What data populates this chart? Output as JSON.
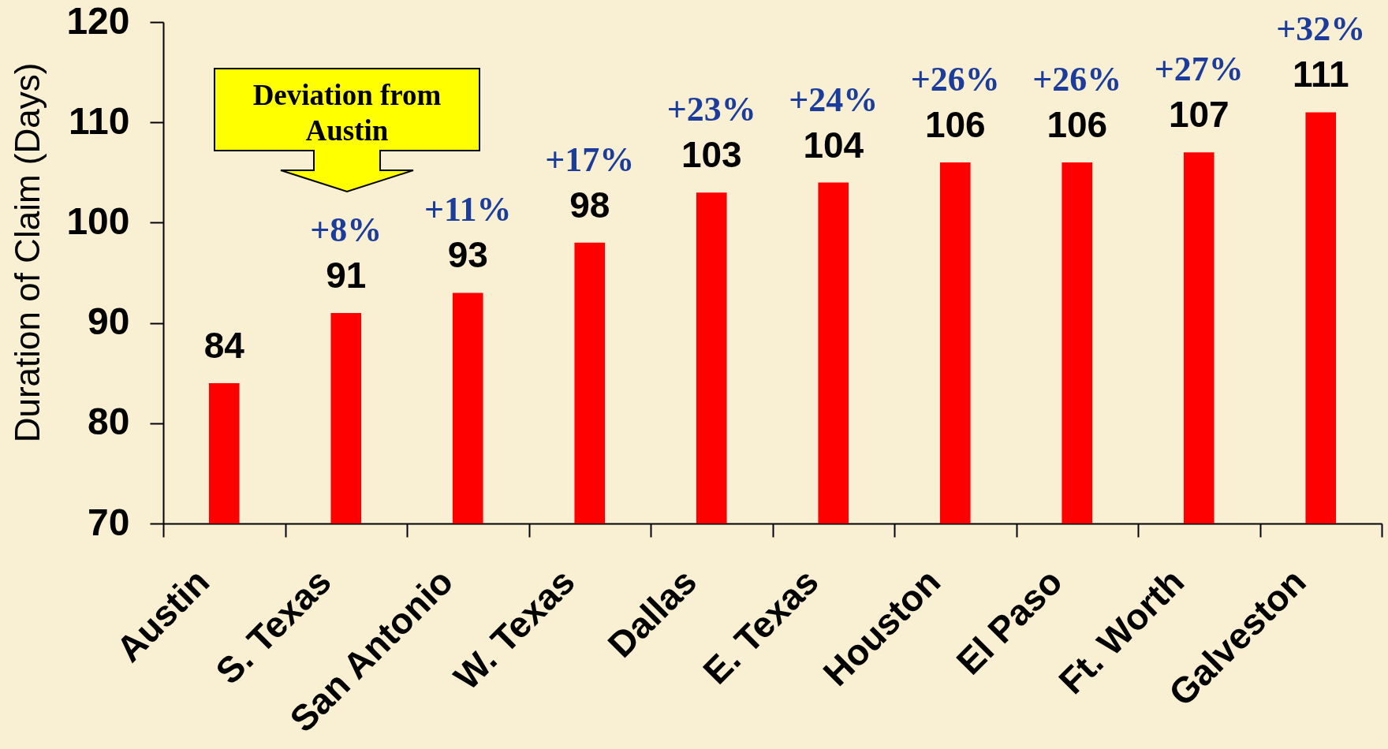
{
  "chart_data": {
    "type": "bar",
    "ylabel": "Duration of Claim (Days)",
    "categories": [
      "Austin",
      "S. Texas",
      "San Antonio",
      "W. Texas",
      "Dallas",
      "E. Texas",
      "Houston",
      "El Paso",
      "Ft. Worth",
      "Galveston"
    ],
    "values": [
      84,
      91,
      93,
      98,
      103,
      104,
      106,
      106,
      107,
      111
    ],
    "color": "#ff0000",
    "ylim": [
      70,
      120
    ],
    "yticks": [
      70,
      80,
      90,
      100,
      110,
      120
    ],
    "grid": false,
    "data_labels": true,
    "annotations": [
      "Deviation from\nAustin",
      "+8%",
      "+11%",
      "+17%",
      "+23%",
      "+24%",
      "+26%",
      "+26%",
      "+27%",
      "+32%"
    ]
  }
}
